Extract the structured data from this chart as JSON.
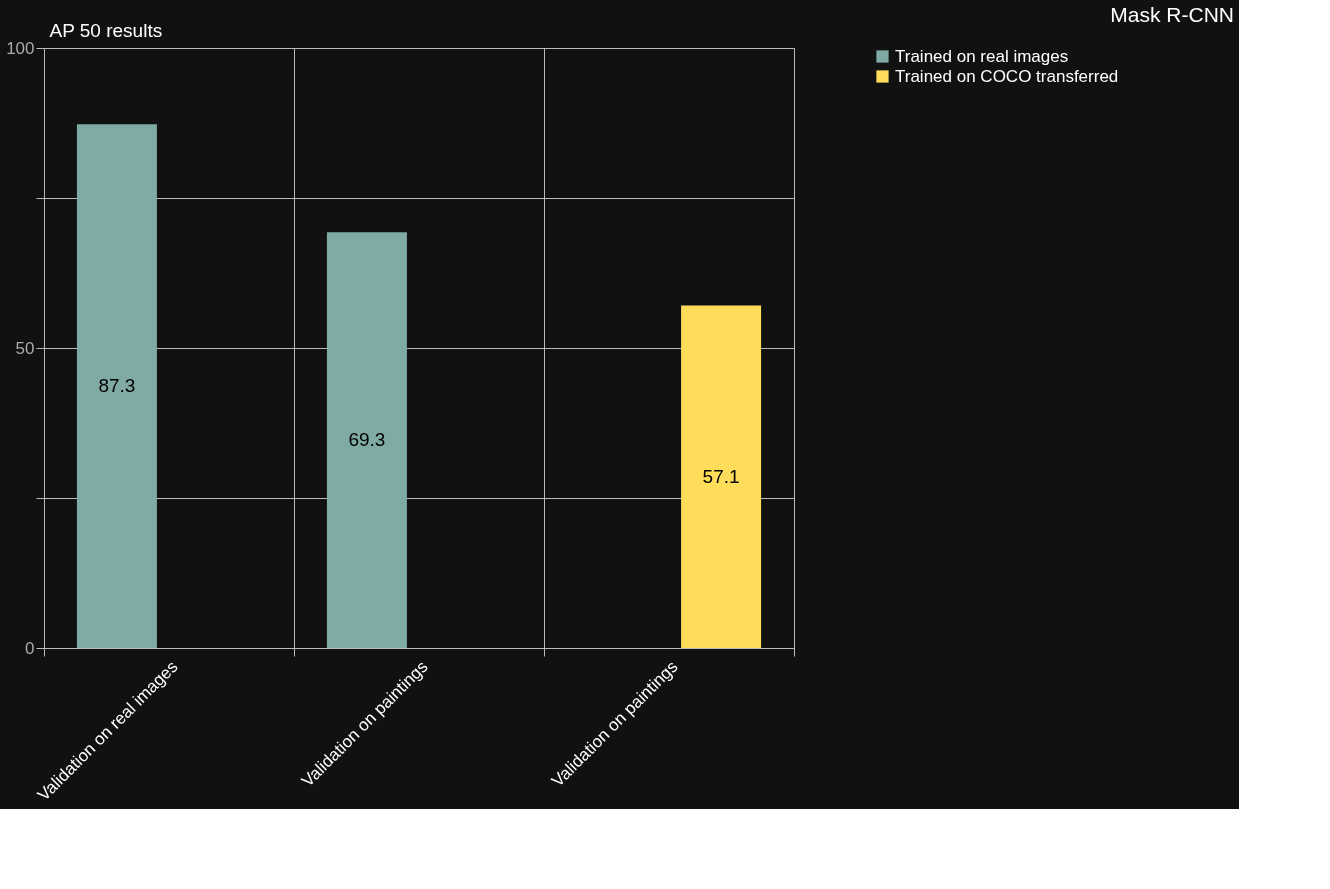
{
  "chart_data": {
    "type": "bar",
    "title": "Mask R-CNN",
    "ylabel": "AP 50 results",
    "categories": [
      "Validation on real images",
      "Validation on paintings",
      "Validation on paintings"
    ],
    "series": [
      {
        "name": "Trained on real images",
        "color": "#80aaa4",
        "values": [
          87.3,
          69.3,
          null
        ]
      },
      {
        "name": "Trained on COCO transferred",
        "color": "#ffdc5a",
        "values": [
          null,
          null,
          57.1
        ]
      }
    ],
    "ylim": [
      0,
      100
    ],
    "yticks": [
      0,
      {
        "value": 25,
        "label": null
      },
      50,
      {
        "value": 75,
        "label": null
      },
      100
    ],
    "grid": true,
    "legend": "right",
    "data_labels": true
  }
}
